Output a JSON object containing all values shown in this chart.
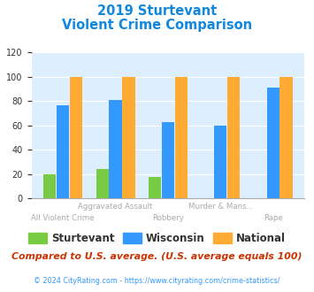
{
  "title_line1": "2019 Sturtevant",
  "title_line2": "Violent Crime Comparison",
  "categories": [
    "All Violent Crime",
    "Aggravated Assault",
    "Robbery",
    "Murder & Mans...",
    "Rape"
  ],
  "top_labels": [
    "",
    "Aggravated Assault",
    "",
    "Murder & Mans...",
    ""
  ],
  "bottom_labels": [
    "All Violent Crime",
    "",
    "Robbery",
    "",
    "Rape"
  ],
  "sturtevant": [
    20,
    24,
    18,
    0,
    0
  ],
  "wisconsin": [
    77,
    81,
    63,
    60,
    91
  ],
  "national": [
    100,
    100,
    100,
    100,
    100
  ],
  "color_sturtevant": "#77cc44",
  "color_wisconsin": "#3399ff",
  "color_national": "#ffaa33",
  "ylim": [
    0,
    120
  ],
  "yticks": [
    0,
    20,
    40,
    60,
    80,
    100,
    120
  ],
  "bg_color": "#ddeeff",
  "title_color": "#1188dd",
  "footnote": "Compared to U.S. average. (U.S. average equals 100)",
  "copyright": "© 2024 CityRating.com - https://www.cityrating.com/crime-statistics/",
  "footnote_color": "#cc3300",
  "copyright_color": "#3399ff"
}
